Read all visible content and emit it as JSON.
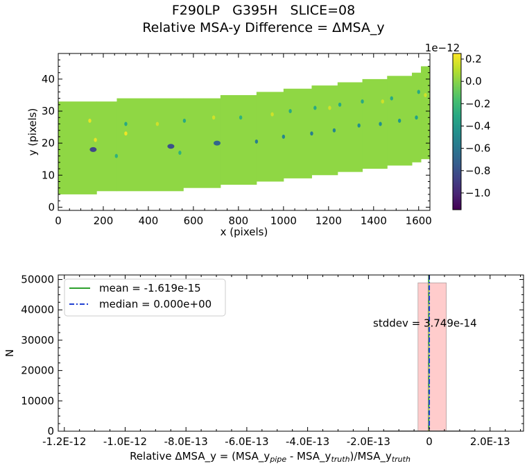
{
  "figure": {
    "title_line1": "F290LP   G395H   SLICE=08",
    "title_line2": "Relative MSA-y Difference = ΔMSA_y"
  },
  "chart_data": [
    {
      "type": "heatmap",
      "xlabel": "x (pixels)",
      "ylabel": "y (pixels)",
      "xlim": [
        0,
        1650
      ],
      "ylim": [
        -1,
        48
      ],
      "xticks": [
        "0",
        "200",
        "400",
        "600",
        "800",
        "1000",
        "1200",
        "1400",
        "1600"
      ],
      "yticks": [
        "0",
        "10",
        "20",
        "30",
        "40"
      ],
      "colormap": "viridis",
      "background_value_color": "#8fd744",
      "slit_band": {
        "x_edges": [
          0,
          170,
          260,
          555,
          720,
          880,
          1000,
          1125,
          1240,
          1350,
          1460,
          1570,
          1610,
          1650
        ],
        "bottom": [
          4,
          5,
          5,
          6,
          7,
          8,
          9,
          10,
          11,
          12,
          13,
          14,
          15
        ],
        "top": [
          33,
          33,
          34,
          34,
          35,
          36,
          37,
          38,
          39,
          40,
          41,
          42,
          44
        ]
      },
      "notable_pixels": [
        {
          "x": 155,
          "y": 18,
          "value": -0.85
        },
        {
          "x": 500,
          "y": 19,
          "value": -0.8
        },
        {
          "x": 705,
          "y": 20,
          "value": -0.7
        },
        {
          "x": 880,
          "y": 20.5,
          "value": -0.55
        },
        {
          "x": 1000,
          "y": 22,
          "value": -0.5
        },
        {
          "x": 1125,
          "y": 23,
          "value": -0.55
        },
        {
          "x": 1225,
          "y": 24,
          "value": -0.5
        },
        {
          "x": 1335,
          "y": 25.5,
          "value": -0.45
        },
        {
          "x": 1430,
          "y": 26,
          "value": -0.45
        },
        {
          "x": 1515,
          "y": 27,
          "value": -0.4
        },
        {
          "x": 1590,
          "y": 28,
          "value": -0.35
        },
        {
          "x": 300,
          "y": 26,
          "value": -0.3
        },
        {
          "x": 258,
          "y": 16,
          "value": -0.25
        },
        {
          "x": 540,
          "y": 17,
          "value": -0.25
        },
        {
          "x": 560,
          "y": 27,
          "value": -0.3
        },
        {
          "x": 810,
          "y": 28,
          "value": -0.25
        },
        {
          "x": 1030,
          "y": 30,
          "value": -0.3
        },
        {
          "x": 1140,
          "y": 31,
          "value": -0.3
        },
        {
          "x": 1250,
          "y": 32,
          "value": -0.3
        },
        {
          "x": 1350,
          "y": 33,
          "value": -0.3
        },
        {
          "x": 1480,
          "y": 34,
          "value": -0.3
        },
        {
          "x": 1600,
          "y": 36,
          "value": -0.3
        },
        {
          "x": 140,
          "y": 27,
          "value": 0.2
        },
        {
          "x": 165,
          "y": 21,
          "value": 0.2
        },
        {
          "x": 300,
          "y": 23,
          "value": 0.22
        },
        {
          "x": 440,
          "y": 26,
          "value": 0.15
        },
        {
          "x": 690,
          "y": 28,
          "value": 0.15
        },
        {
          "x": 950,
          "y": 29,
          "value": 0.15
        },
        {
          "x": 1205,
          "y": 31,
          "value": 0.15
        },
        {
          "x": 1440,
          "y": 33,
          "value": 0.15
        },
        {
          "x": 1630,
          "y": 35,
          "value": 0.15
        }
      ],
      "colorbar": {
        "range": [
          -1.15,
          0.25
        ],
        "offset_label": "1e−12",
        "ticks": [
          "0.2",
          "0.0",
          "−0.2",
          "−0.4",
          "−0.6",
          "−0.8",
          "−1.0"
        ],
        "tick_values": [
          0.2,
          0.0,
          -0.2,
          -0.4,
          -0.6,
          -0.8,
          -1.0
        ]
      }
    },
    {
      "type": "bar",
      "subtype": "histogram",
      "xlabel_parts": {
        "prefix": "Relative ΔMSA_y = (MSA_y",
        "sub1": "pipe",
        "mid": " - MSA_y",
        "sub2": "truth",
        "mid2": ")/MSA_y",
        "sub3": "truth"
      },
      "ylabel": "N",
      "xlim": [
        -1.22e-12,
        3.1e-13
      ],
      "ylim": [
        0,
        51500
      ],
      "xticks": [
        "-1.2E-12",
        "-1.0E-12",
        "-8.0E-13",
        "-6.0E-13",
        "-4.0E-13",
        "-2.0E-13",
        "0",
        "2.0E-13"
      ],
      "xtick_values": [
        -1.2e-12,
        -1e-12,
        -8e-13,
        -6e-13,
        -4e-13,
        -2e-13,
        0,
        2e-13
      ],
      "yticks": [
        "0",
        "10000",
        "20000",
        "30000",
        "40000",
        "50000"
      ],
      "ytick_values": [
        0,
        10000,
        20000,
        30000,
        40000,
        50000
      ],
      "bins": [
        {
          "x0": -3.7e-14,
          "x1": 5.6e-14,
          "count": 48900
        }
      ],
      "mean": -1.619e-15,
      "median": 0.0,
      "legend": {
        "placement": "upper-left",
        "mean_label": "mean = -1.619e-15",
        "median_label": "median = 0.000e+00"
      },
      "annotation": "stddev = 3.749e-14",
      "colors": {
        "bar": "#ffcccc",
        "mean": "#2ca02c",
        "median": "#1f3fd1",
        "center_line": "#e0d060"
      }
    }
  ]
}
